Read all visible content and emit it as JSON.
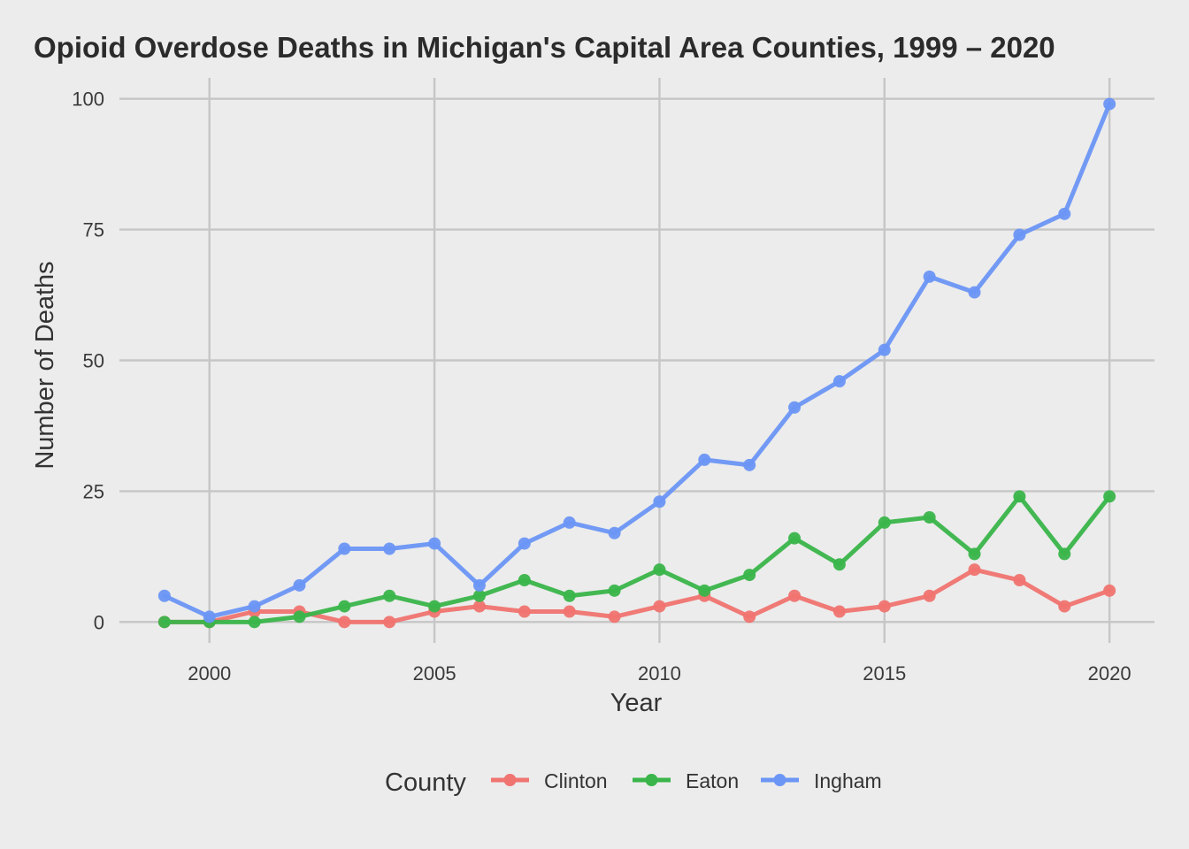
{
  "chart_data": {
    "type": "line",
    "title": "Opioid Overdose Deaths in Michigan's Capital Area Counties, 1999 – 2020",
    "xlabel": "Year",
    "ylabel": "Number of Deaths",
    "xlim": [
      1998,
      2021
    ],
    "ylim": [
      -4,
      104
    ],
    "x_ticks": [
      2000,
      2005,
      2010,
      2015,
      2020
    ],
    "y_ticks": [
      0,
      25,
      50,
      75,
      100
    ],
    "grid": true,
    "legend": {
      "title": "County",
      "position": "bottom"
    },
    "x": [
      1999,
      2000,
      2001,
      2002,
      2003,
      2004,
      2005,
      2006,
      2007,
      2008,
      2009,
      2010,
      2011,
      2012,
      2013,
      2014,
      2015,
      2016,
      2017,
      2018,
      2019,
      2020
    ],
    "series": [
      {
        "name": "Clinton",
        "color": "#f07470",
        "values": [
          0,
          0,
          2,
          2,
          0,
          0,
          2,
          3,
          2,
          2,
          1,
          3,
          5,
          1,
          5,
          2,
          3,
          5,
          10,
          8,
          3,
          6
        ]
      },
      {
        "name": "Eaton",
        "color": "#3ab54a",
        "values": [
          0,
          0,
          0,
          1,
          3,
          5,
          3,
          5,
          8,
          5,
          6,
          10,
          6,
          9,
          16,
          11,
          19,
          20,
          13,
          24,
          13,
          24
        ]
      },
      {
        "name": "Ingham",
        "color": "#6b96f5",
        "values": [
          5,
          1,
          3,
          7,
          14,
          14,
          15,
          7,
          15,
          19,
          17,
          23,
          31,
          30,
          41,
          46,
          52,
          66,
          63,
          74,
          78,
          99
        ]
      }
    ]
  }
}
